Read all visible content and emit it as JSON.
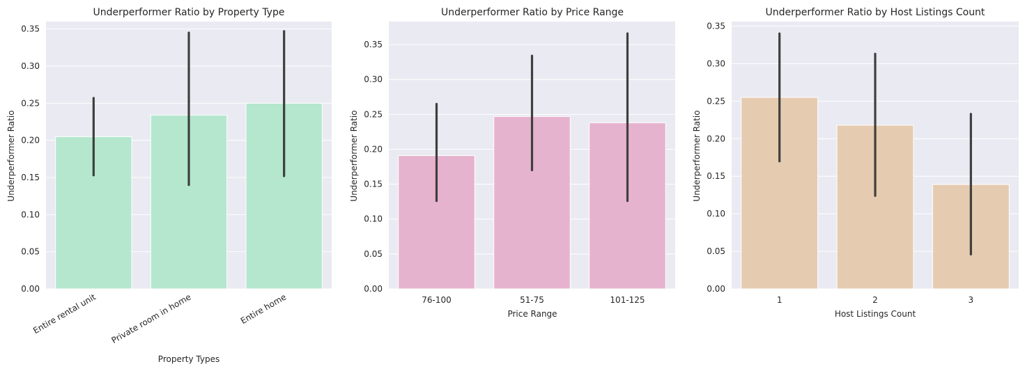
{
  "chart_data": [
    {
      "type": "bar",
      "title": "Underperformer Ratio by Property Type",
      "xlabel": "Property Types",
      "ylabel": "Underperformer Ratio",
      "categories": [
        "Entire rental unit",
        "Private room in home",
        "Entire home"
      ],
      "values": [
        0.205,
        0.234,
        0.25
      ],
      "error_low": [
        0.153,
        0.14,
        0.152
      ],
      "error_high": [
        0.257,
        0.345,
        0.347
      ],
      "ylim": [
        0,
        0.36
      ],
      "yticks": [
        0.0,
        0.05,
        0.1,
        0.15,
        0.2,
        0.25,
        0.3,
        0.35
      ],
      "ytick_labels": [
        "0.00",
        "0.05",
        "0.10",
        "0.15",
        "0.20",
        "0.25",
        "0.30",
        "0.35"
      ],
      "bar_color": "#b4e7ce",
      "rotate_xticks": true,
      "grid": true
    },
    {
      "type": "bar",
      "title": "Underperformer Ratio by Price Range",
      "xlabel": "Price Range",
      "ylabel": "Underperformer Ratio",
      "categories": [
        "76-100",
        "51-75",
        "101-125"
      ],
      "values": [
        0.191,
        0.247,
        0.238
      ],
      "error_low": [
        0.126,
        0.17,
        0.126
      ],
      "error_high": [
        0.265,
        0.334,
        0.366
      ],
      "ylim": [
        0,
        0.383
      ],
      "yticks": [
        0.0,
        0.05,
        0.1,
        0.15,
        0.2,
        0.25,
        0.3,
        0.35
      ],
      "ytick_labels": [
        "0.00",
        "0.05",
        "0.10",
        "0.15",
        "0.20",
        "0.25",
        "0.30",
        "0.35"
      ],
      "bar_color": "#e6b3ce",
      "rotate_xticks": false,
      "grid": true
    },
    {
      "type": "bar",
      "title": "Underperformer Ratio by Host Listings Count",
      "xlabel": "Host Listings Count",
      "ylabel": "Underperformer Ratio",
      "categories": [
        "1",
        "2",
        "3"
      ],
      "values": [
        0.255,
        0.218,
        0.139
      ],
      "error_low": [
        0.17,
        0.124,
        0.046
      ],
      "error_high": [
        0.34,
        0.313,
        0.233
      ],
      "ylim": [
        0,
        0.356
      ],
      "yticks": [
        0.0,
        0.05,
        0.1,
        0.15,
        0.2,
        0.25,
        0.3,
        0.35
      ],
      "ytick_labels": [
        "0.00",
        "0.05",
        "0.10",
        "0.15",
        "0.20",
        "0.25",
        "0.30",
        "0.35"
      ],
      "bar_color": "#e5cbb0",
      "rotate_xticks": false,
      "grid": true
    }
  ],
  "style": {
    "axes_background": "#eaeaf2",
    "grid_color": "#ffffff",
    "error_bar_color": "#3f3f3f",
    "text_color": "#262626"
  }
}
